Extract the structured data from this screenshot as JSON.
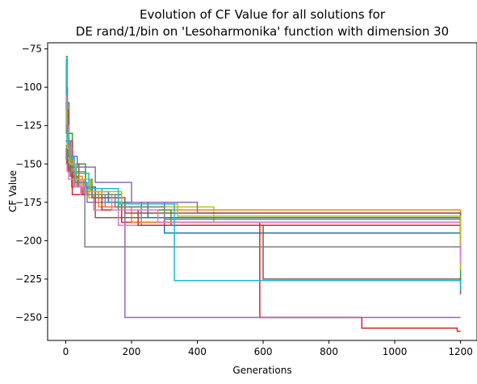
{
  "chart_data": {
    "type": "line",
    "title_line1": "Evolution of CF Value for all solutions for",
    "title_line2": "DE rand/1/bin on 'Lesoharmonika' function with dimension 30",
    "xlabel": "Generations",
    "ylabel": "CF Value",
    "xlim": [
      -55,
      1250
    ],
    "ylim": [
      -265,
      -71
    ],
    "xticks": [
      0,
      200,
      400,
      600,
      800,
      1000,
      1200
    ],
    "yticks": [
      -75,
      -100,
      -125,
      -150,
      -175,
      -200,
      -225,
      -250
    ],
    "grid": false,
    "legend": "none",
    "step": true,
    "series": [
      {
        "color": "#1f77b4",
        "x": [
          0,
          3,
          8,
          15,
          30,
          55,
          120,
          300,
          1200
        ],
        "y": [
          -102,
          -125,
          -140,
          -150,
          -160,
          -170,
          -175,
          -195,
          -201
        ]
      },
      {
        "color": "#ff7f0e",
        "x": [
          0,
          2,
          6,
          12,
          25,
          60,
          110,
          170,
          1200
        ],
        "y": [
          -95,
          -118,
          -135,
          -148,
          -155,
          -166,
          -172,
          -180,
          -195
        ]
      },
      {
        "color": "#2ca02c",
        "x": [
          0,
          4,
          10,
          20,
          60,
          90,
          230,
          1200
        ],
        "y": [
          -80,
          -110,
          -130,
          -150,
          -165,
          -175,
          -185,
          -229
        ]
      },
      {
        "color": "#d62728",
        "x": [
          0,
          5,
          9,
          20,
          170,
          590,
          900,
          1190,
          1200
        ],
        "y": [
          -100,
          -115,
          -135,
          -170,
          -188,
          -250,
          -257,
          -259,
          -259
        ]
      },
      {
        "color": "#9467bd",
        "x": [
          0,
          3,
          7,
          14,
          28,
          65,
          180,
          1200
        ],
        "y": [
          -88,
          -120,
          -145,
          -155,
          -165,
          -175,
          -250,
          -250
        ]
      },
      {
        "color": "#8c564b",
        "x": [
          0,
          2,
          6,
          15,
          40,
          90,
          300,
          600,
          1200
        ],
        "y": [
          -110,
          -130,
          -145,
          -150,
          -165,
          -185,
          -190,
          -225,
          -235
        ]
      },
      {
        "color": "#e377c2",
        "x": [
          0,
          3,
          9,
          22,
          45,
          85,
          160,
          1200
        ],
        "y": [
          -98,
          -125,
          -140,
          -160,
          -170,
          -180,
          -190,
          -198
        ]
      },
      {
        "color": "#7f7f7f",
        "x": [
          0,
          4,
          8,
          18,
          58,
          140,
          1200
        ],
        "y": [
          -120,
          -130,
          -145,
          -165,
          -204,
          -204,
          -205
        ]
      },
      {
        "color": "#bcbd22",
        "x": [
          0,
          3,
          7,
          15,
          30,
          70,
          150,
          450,
          1200
        ],
        "y": [
          -115,
          -128,
          -142,
          -155,
          -165,
          -172,
          -178,
          -188,
          -219
        ]
      },
      {
        "color": "#17becf",
        "x": [
          0,
          2,
          5,
          10,
          25,
          55,
          120,
          230,
          1200
        ],
        "y": [
          -82,
          -105,
          -130,
          -145,
          -160,
          -170,
          -178,
          -190,
          -210
        ]
      },
      {
        "color": "#1f77b4",
        "x": [
          0,
          5,
          12,
          30,
          75,
          130,
          250,
          1200
        ],
        "y": [
          -140,
          -148,
          -155,
          -160,
          -168,
          -175,
          -185,
          -198
        ]
      },
      {
        "color": "#ff7f0e",
        "x": [
          0,
          4,
          10,
          24,
          50,
          100,
          200,
          1200
        ],
        "y": [
          -130,
          -138,
          -148,
          -158,
          -168,
          -178,
          -188,
          -193
        ]
      },
      {
        "color": "#2ca02c",
        "x": [
          0,
          6,
          14,
          32,
          80,
          160,
          320,
          1200
        ],
        "y": [
          -135,
          -145,
          -152,
          -160,
          -170,
          -180,
          -190,
          -193
        ]
      },
      {
        "color": "#d62728",
        "x": [
          0,
          3,
          8,
          20,
          50,
          110,
          220,
          1200
        ],
        "y": [
          -145,
          -150,
          -155,
          -165,
          -170,
          -180,
          -190,
          -197
        ]
      },
      {
        "color": "#9467bd",
        "x": [
          0,
          5,
          15,
          35,
          90,
          200,
          400,
          1200
        ],
        "y": [
          -125,
          -135,
          -145,
          -152,
          -162,
          -175,
          -182,
          -186
        ]
      },
      {
        "color": "#8c564b",
        "x": [
          0,
          2,
          6,
          14,
          35,
          80,
          180,
          1200
        ],
        "y": [
          -140,
          -147,
          -152,
          -158,
          -165,
          -172,
          -182,
          -196
        ]
      },
      {
        "color": "#e377c2",
        "x": [
          0,
          4,
          9,
          25,
          60,
          140,
          280,
          1200
        ],
        "y": [
          -150,
          -155,
          -160,
          -165,
          -170,
          -180,
          -188,
          -215
        ]
      },
      {
        "color": "#7f7f7f",
        "x": [
          0,
          3,
          11,
          28,
          65,
          150,
          300,
          1200
        ],
        "y": [
          -138,
          -148,
          -155,
          -162,
          -170,
          -178,
          -186,
          -199
        ]
      },
      {
        "color": "#bcbd22",
        "x": [
          0,
          5,
          13,
          30,
          75,
          170,
          340,
          1200
        ],
        "y": [
          -132,
          -140,
          -150,
          -160,
          -168,
          -176,
          -184,
          -202
        ]
      },
      {
        "color": "#17becf",
        "x": [
          0,
          4,
          12,
          26,
          70,
          160,
          330,
          1200
        ],
        "y": [
          -128,
          -136,
          -146,
          -156,
          -166,
          -176,
          -226,
          -232
        ]
      }
    ]
  }
}
